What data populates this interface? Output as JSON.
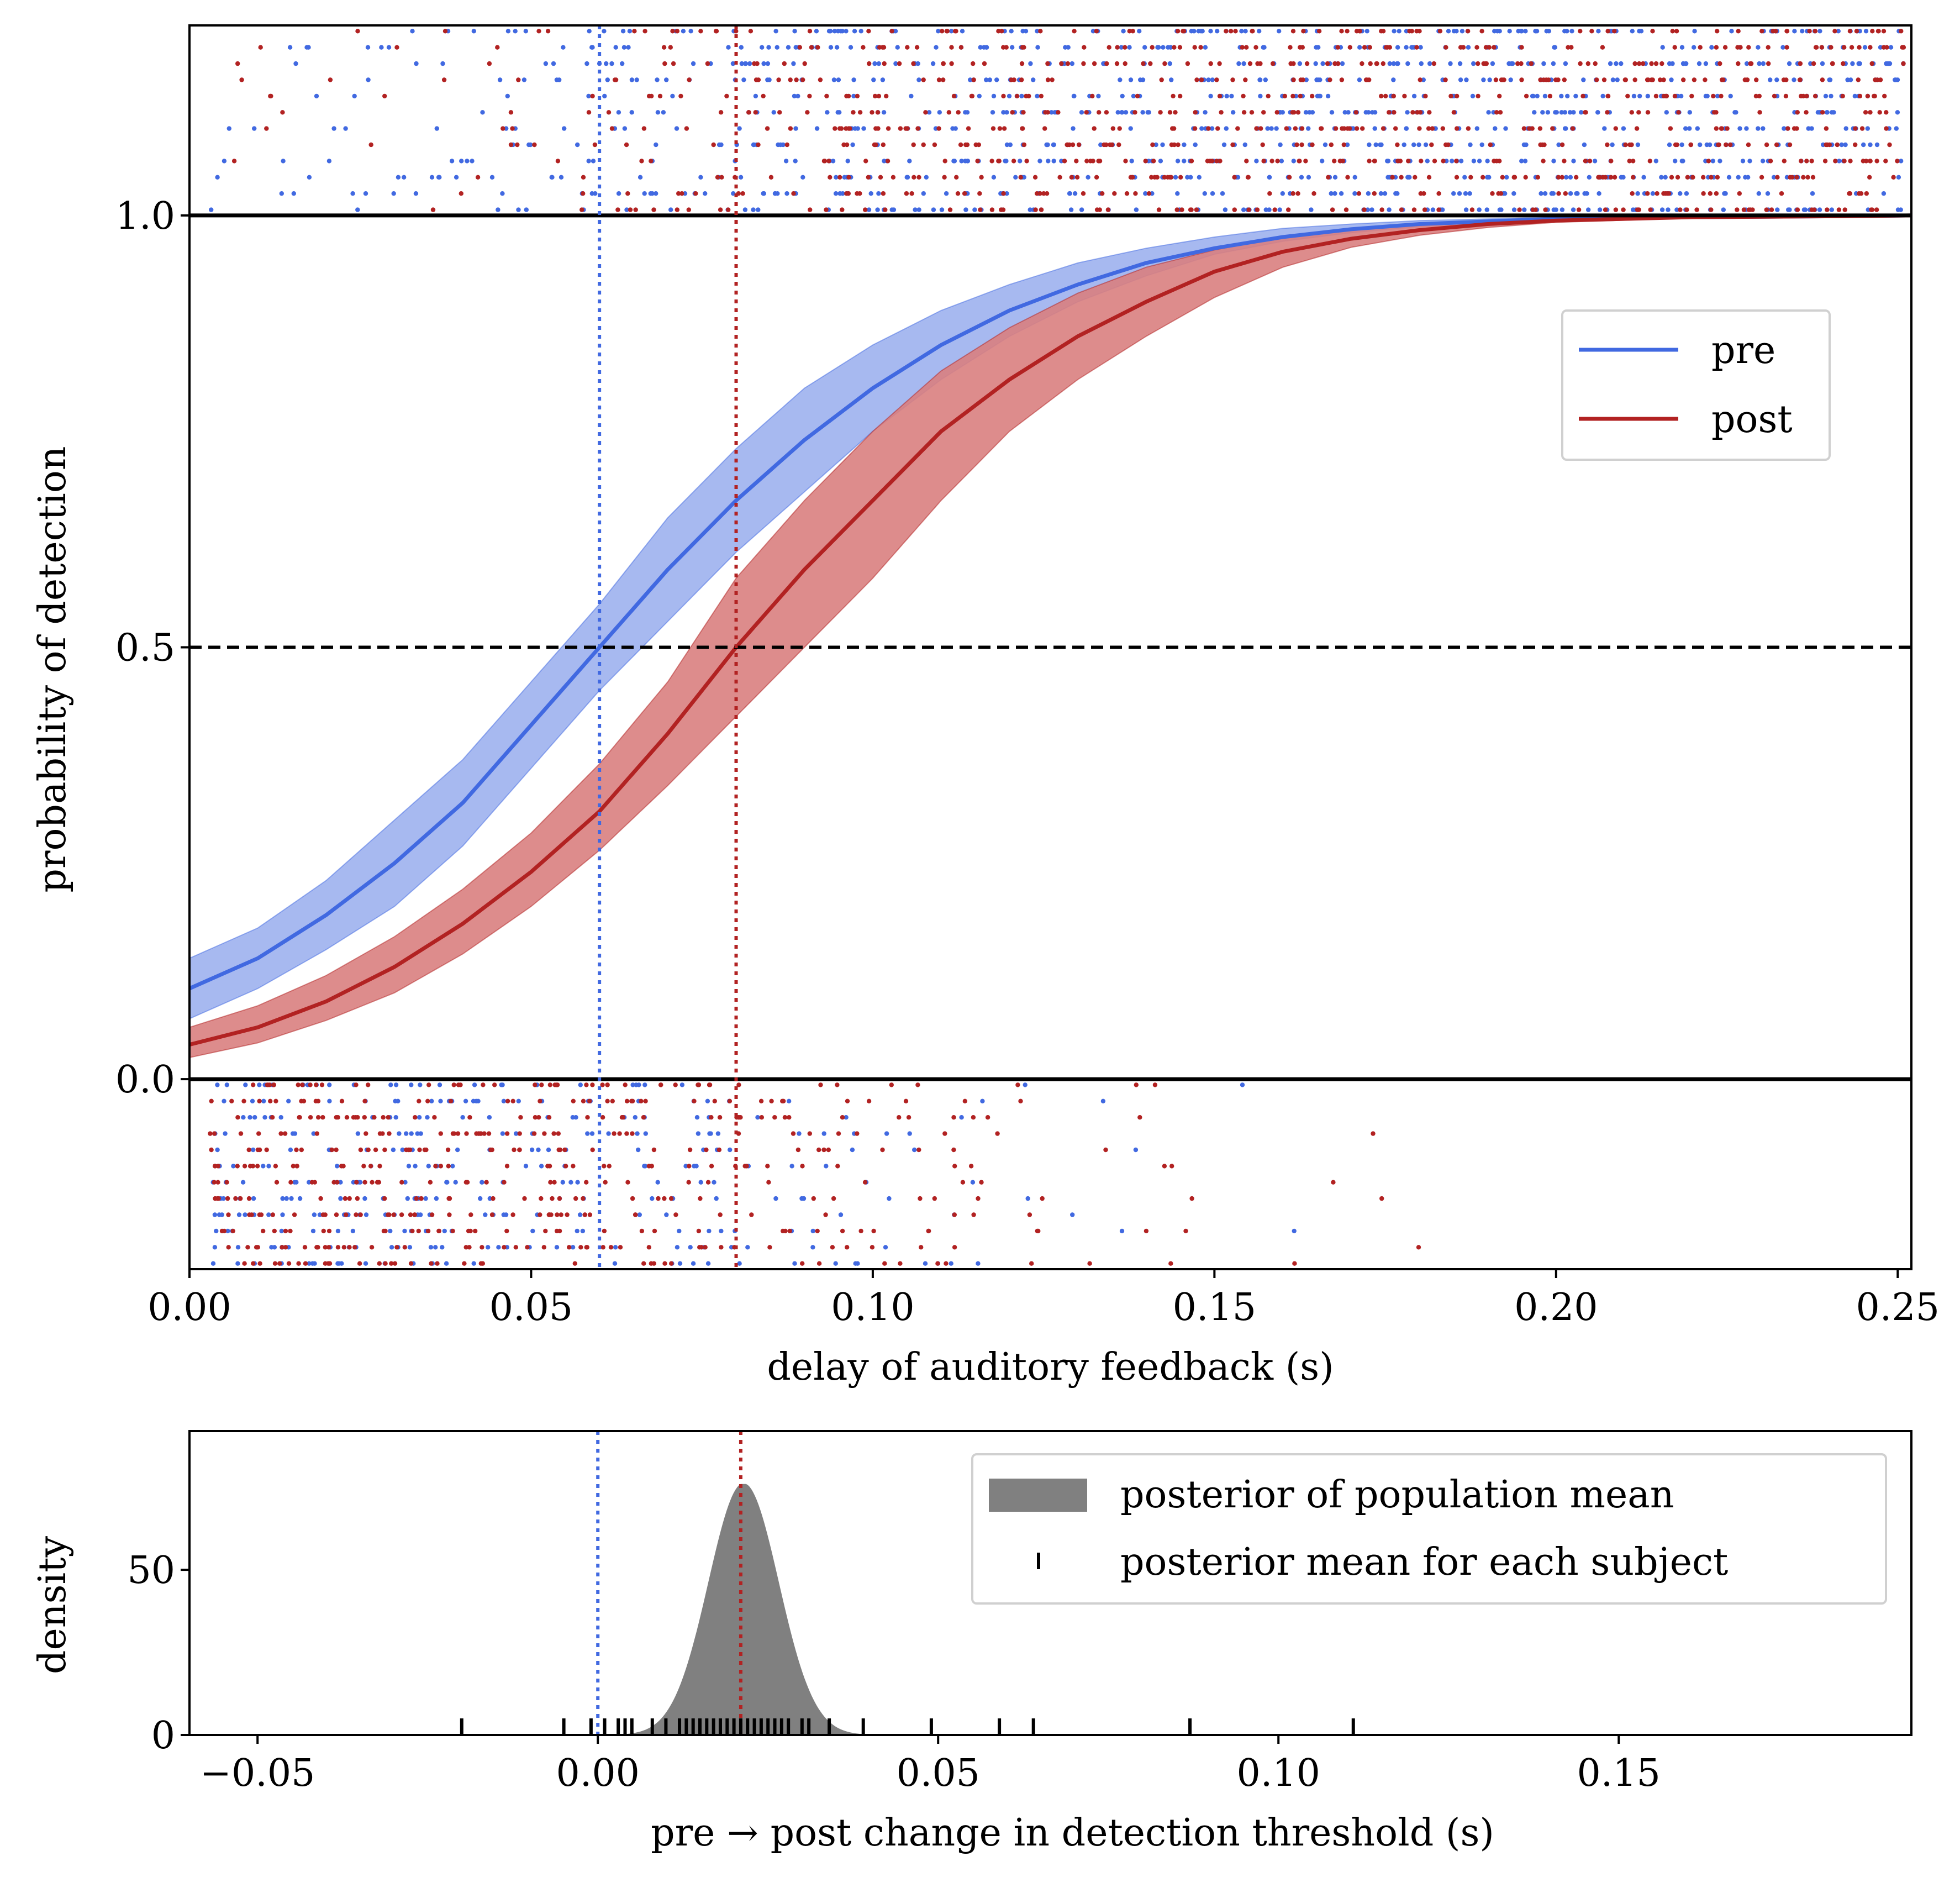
{
  "chart_data": [
    {
      "type": "line",
      "xlabel": "delay of auditory feedback (s)",
      "ylabel": "probability of detection",
      "xlim": [
        0.0,
        0.252
      ],
      "ylim": [
        -0.22,
        1.22
      ],
      "xticks": [
        {
          "value": 0.0,
          "label": "0.00"
        },
        {
          "value": 0.05,
          "label": "0.05"
        },
        {
          "value": 0.1,
          "label": "0.10"
        },
        {
          "value": 0.15,
          "label": "0.15"
        },
        {
          "value": 0.2,
          "label": "0.20"
        },
        {
          "value": 0.25,
          "label": "0.25"
        }
      ],
      "yticks": [
        {
          "value": 0.0,
          "label": "0.0"
        },
        {
          "value": 0.5,
          "label": "0.5"
        },
        {
          "value": 1.0,
          "label": "1.0"
        }
      ],
      "grid": false,
      "legend_position": "upper-right",
      "series": [
        {
          "name": "pre",
          "color": "#4169e1",
          "band_color": "#9db1ee",
          "threshold": 0.06,
          "x": [
            0.0,
            0.01,
            0.02,
            0.03,
            0.04,
            0.05,
            0.06,
            0.07,
            0.08,
            0.09,
            0.1,
            0.11,
            0.12,
            0.13,
            0.14,
            0.15,
            0.16,
            0.17,
            0.18,
            0.19,
            0.2,
            0.22,
            0.24,
            0.252
          ],
          "y": [
            0.105,
            0.14,
            0.19,
            0.25,
            0.32,
            0.41,
            0.5,
            0.59,
            0.67,
            0.74,
            0.8,
            0.85,
            0.89,
            0.92,
            0.945,
            0.962,
            0.975,
            0.984,
            0.99,
            0.993,
            0.996,
            0.998,
            0.999,
            1.0
          ],
          "lower": [
            0.07,
            0.105,
            0.15,
            0.2,
            0.27,
            0.36,
            0.45,
            0.53,
            0.61,
            0.68,
            0.75,
            0.81,
            0.86,
            0.9,
            0.93,
            0.955,
            0.97,
            0.98,
            0.987,
            0.992,
            0.995,
            0.998,
            0.999,
            1.0
          ],
          "upper": [
            0.14,
            0.175,
            0.23,
            0.3,
            0.37,
            0.46,
            0.55,
            0.65,
            0.73,
            0.8,
            0.85,
            0.89,
            0.92,
            0.945,
            0.962,
            0.975,
            0.985,
            0.99,
            0.994,
            0.996,
            0.998,
            0.999,
            1.0,
            1.0
          ]
        },
        {
          "name": "post",
          "color": "#b22222",
          "band_color": "#d98080",
          "threshold": 0.08,
          "x": [
            0.0,
            0.01,
            0.02,
            0.03,
            0.04,
            0.05,
            0.06,
            0.07,
            0.08,
            0.09,
            0.1,
            0.11,
            0.12,
            0.13,
            0.14,
            0.15,
            0.16,
            0.17,
            0.18,
            0.19,
            0.2,
            0.22,
            0.24,
            0.252
          ],
          "y": [
            0.04,
            0.06,
            0.09,
            0.13,
            0.18,
            0.24,
            0.31,
            0.4,
            0.5,
            0.59,
            0.67,
            0.75,
            0.81,
            0.86,
            0.9,
            0.935,
            0.958,
            0.973,
            0.983,
            0.99,
            0.994,
            0.998,
            0.999,
            1.0
          ],
          "lower": [
            0.025,
            0.042,
            0.068,
            0.1,
            0.145,
            0.2,
            0.265,
            0.34,
            0.42,
            0.5,
            0.58,
            0.67,
            0.75,
            0.81,
            0.86,
            0.905,
            0.94,
            0.963,
            0.977,
            0.986,
            0.992,
            0.997,
            0.999,
            1.0
          ],
          "upper": [
            0.06,
            0.085,
            0.12,
            0.165,
            0.22,
            0.285,
            0.365,
            0.46,
            0.58,
            0.67,
            0.75,
            0.82,
            0.87,
            0.91,
            0.94,
            0.96,
            0.975,
            0.984,
            0.99,
            0.994,
            0.997,
            0.999,
            1.0,
            1.0
          ]
        }
      ],
      "reference_lines": [
        {
          "axis": "y",
          "value": 1.0,
          "style": "solid"
        },
        {
          "axis": "y",
          "value": 0.0,
          "style": "solid"
        },
        {
          "axis": "y",
          "value": 0.5,
          "style": "dashed"
        }
      ],
      "trial_scatter": {
        "detected_band": [
          1.0,
          1.22
        ],
        "missed_band": [
          -0.22,
          0.0
        ]
      }
    },
    {
      "type": "area",
      "xlabel": "pre → post change in detection threshold (s)",
      "ylabel": "density",
      "xlim": [
        -0.06,
        0.193
      ],
      "ylim": [
        0,
        92
      ],
      "xticks": [
        {
          "value": -0.05,
          "label": "−0.05"
        },
        {
          "value": 0.0,
          "label": "0.00"
        },
        {
          "value": 0.05,
          "label": "0.05"
        },
        {
          "value": 0.1,
          "label": "0.10"
        },
        {
          "value": 0.15,
          "label": "0.15"
        }
      ],
      "yticks": [
        {
          "value": 0,
          "label": "0"
        },
        {
          "value": 50,
          "label": "50"
        }
      ],
      "legend_position": "upper-right",
      "legend": [
        {
          "label": "posterior of population mean",
          "kind": "patch",
          "color": "#808080"
        },
        {
          "label": "posterior mean for each subject",
          "kind": "tick",
          "color": "#000000"
        }
      ],
      "density": {
        "mean": 0.021,
        "sd": 0.0052,
        "peak": 76,
        "color": "#808080"
      },
      "vlines": [
        {
          "value": 0.0,
          "color": "#4169e1"
        },
        {
          "value": 0.021,
          "color": "#b22222"
        }
      ],
      "subject_means": [
        -0.02,
        -0.005,
        -0.001,
        0.001,
        0.003,
        0.004,
        0.005,
        0.008,
        0.01,
        0.012,
        0.013,
        0.014,
        0.015,
        0.016,
        0.017,
        0.018,
        0.019,
        0.02,
        0.021,
        0.022,
        0.023,
        0.024,
        0.025,
        0.026,
        0.027,
        0.028,
        0.03,
        0.031,
        0.034,
        0.039,
        0.049,
        0.059,
        0.064,
        0.087,
        0.111
      ]
    }
  ]
}
